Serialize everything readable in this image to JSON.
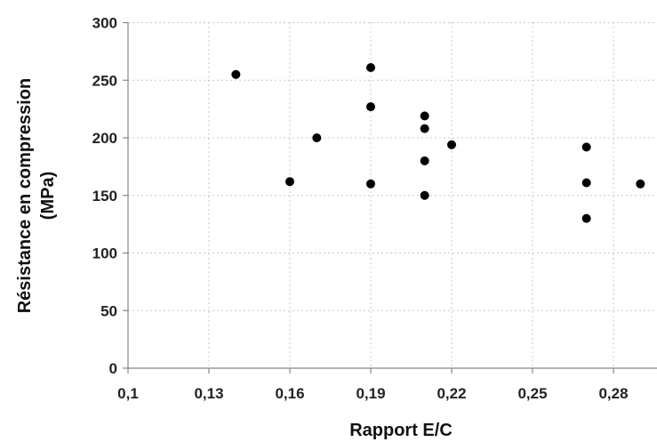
{
  "chart_data": {
    "type": "scatter",
    "xlabel": "Rapport E/C",
    "ylabel_lines": [
      "Résistance en compression",
      "(MPa)"
    ],
    "xlim": [
      0.1,
      0.3
    ],
    "ylim": [
      0,
      300
    ],
    "x_ticks": [
      0.1,
      0.13,
      0.16,
      0.19,
      0.22,
      0.25,
      0.28
    ],
    "x_tick_labels": [
      "0,1",
      "0,13",
      "0,16",
      "0,19",
      "0,22",
      "0,25",
      "0,28"
    ],
    "y_ticks": [
      0,
      50,
      100,
      150,
      200,
      250,
      300
    ],
    "y_tick_labels": [
      "0",
      "50",
      "100",
      "150",
      "200",
      "250",
      "300"
    ],
    "grid": true,
    "legend": "none",
    "point_color": "#000000",
    "series": [
      {
        "x": [
          0.14,
          0.16,
          0.17,
          0.19,
          0.19,
          0.19,
          0.21,
          0.21,
          0.21,
          0.21,
          0.22,
          0.27,
          0.27,
          0.27,
          0.29
        ],
        "y": [
          255,
          162,
          200,
          261,
          227,
          160,
          219,
          208,
          180,
          150,
          194,
          192,
          161,
          130,
          160
        ]
      }
    ]
  }
}
